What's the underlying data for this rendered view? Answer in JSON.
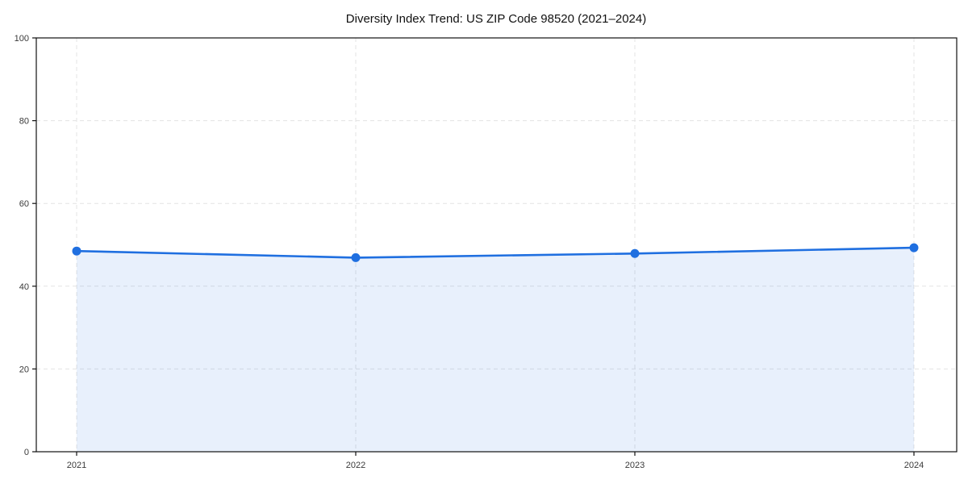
{
  "chart_data": {
    "type": "area",
    "title": "Diversity Index Trend: US ZIP Code 98520 (2021–2024)",
    "categories": [
      "2021",
      "2022",
      "2023",
      "2024"
    ],
    "values": [
      48.5,
      46.9,
      47.9,
      49.3
    ],
    "xlabel": "",
    "ylabel": "",
    "ylim": [
      0,
      100
    ],
    "y_ticks": [
      0,
      20,
      40,
      60,
      80,
      100
    ],
    "grid": true,
    "grid_style": "dashed",
    "legend_position": "none",
    "colors": {
      "line": "#1f6fe0",
      "fill": "#1f6fe0",
      "fill_opacity": 0.1,
      "grid": "#e3e3e3",
      "spine": "#111111",
      "tick_label": "#3a3a3a",
      "title": "#111111",
      "background": "#ffffff"
    }
  }
}
